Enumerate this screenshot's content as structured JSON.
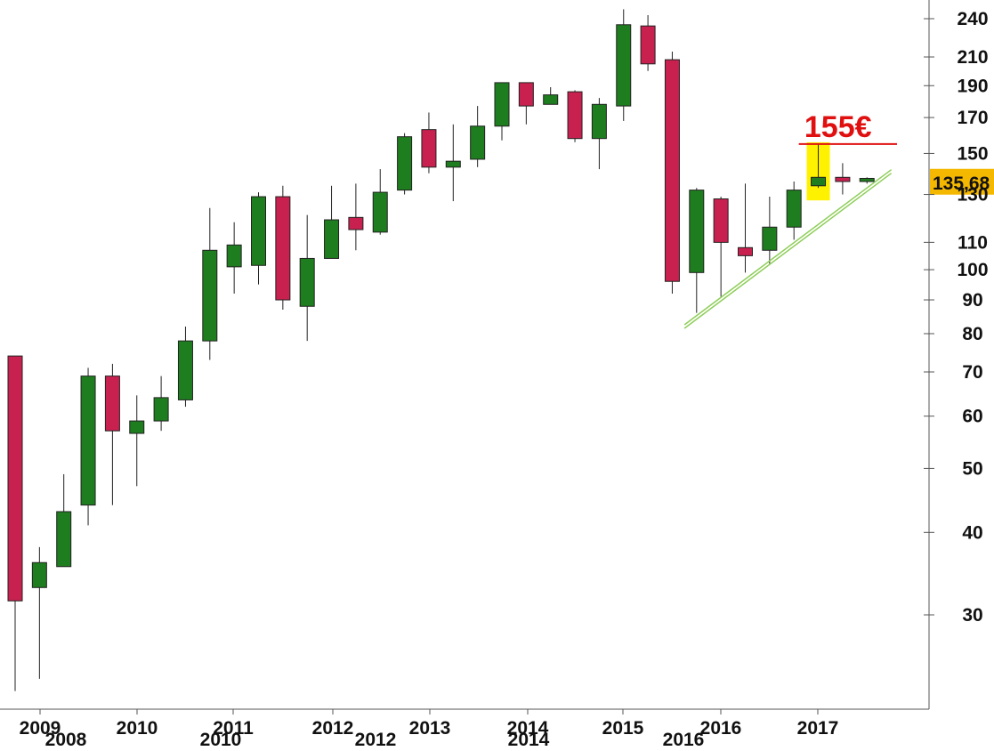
{
  "chart_data": {
    "type": "candlestick",
    "period": "monthly-quarters",
    "y_scale": "log",
    "ylim": [
      22,
      250
    ],
    "y_ticks": [
      240,
      210,
      190,
      170,
      150,
      130,
      110,
      100,
      90,
      80,
      70,
      60,
      50,
      40,
      30
    ],
    "x_labels": [
      "2009",
      "2010",
      "2011",
      "2012",
      "2013",
      "2014",
      "2015",
      "2016",
      "2017"
    ],
    "x_labels_ghost": [
      "2008",
      "2010",
      "2012",
      "2014",
      "2016"
    ],
    "colors": {
      "up": "#1e7d1e",
      "down": "#c8214f",
      "annotation": "#e01010",
      "highlight": "#fff200",
      "trendline": "#8fce5a",
      "price_tag": "#f5b800"
    },
    "candles": [
      {
        "open": 74,
        "high": 74,
        "low": 23,
        "close": 31.5
      },
      {
        "open": 33,
        "high": 38,
        "low": 24,
        "close": 36
      },
      {
        "open": 35.5,
        "high": 49,
        "low": 35.5,
        "close": 43
      },
      {
        "open": 44,
        "high": 71,
        "low": 41,
        "close": 69
      },
      {
        "open": 69,
        "high": 72,
        "low": 44,
        "close": 57
      },
      {
        "open": 56.5,
        "high": 64.5,
        "low": 47,
        "close": 59
      },
      {
        "open": 59,
        "high": 69,
        "low": 57,
        "close": 64
      },
      {
        "open": 63.5,
        "high": 82,
        "low": 62,
        "close": 78
      },
      {
        "open": 78,
        "high": 124,
        "low": 73,
        "close": 107
      },
      {
        "open": 101,
        "high": 118,
        "low": 92,
        "close": 109
      },
      {
        "open": 101.5,
        "high": 131,
        "low": 95,
        "close": 129
      },
      {
        "open": 129,
        "high": 134,
        "low": 87,
        "close": 90
      },
      {
        "open": 88,
        "high": 121,
        "low": 78,
        "close": 104
      },
      {
        "open": 104,
        "high": 134,
        "low": 104,
        "close": 119
      },
      {
        "open": 120,
        "high": 135,
        "low": 107,
        "close": 115
      },
      {
        "open": 114,
        "high": 142,
        "low": 113,
        "close": 131
      },
      {
        "open": 132,
        "high": 161,
        "low": 130,
        "close": 159
      },
      {
        "open": 163,
        "high": 173,
        "low": 140,
        "close": 143
      },
      {
        "open": 143,
        "high": 166,
        "low": 127,
        "close": 146
      },
      {
        "open": 147,
        "high": 177,
        "low": 143,
        "close": 165
      },
      {
        "open": 165,
        "high": 192,
        "low": 157,
        "close": 192
      },
      {
        "open": 192,
        "high": 192,
        "low": 166,
        "close": 177
      },
      {
        "open": 178,
        "high": 189,
        "low": 178,
        "close": 184
      },
      {
        "open": 186,
        "high": 187,
        "low": 156,
        "close": 158
      },
      {
        "open": 158,
        "high": 182,
        "low": 142,
        "close": 178
      },
      {
        "open": 177,
        "high": 248,
        "low": 168,
        "close": 235
      },
      {
        "open": 234,
        "high": 243,
        "low": 200,
        "close": 205
      },
      {
        "open": 208,
        "high": 214,
        "low": 92,
        "close": 96
      },
      {
        "open": 99,
        "high": 133,
        "low": 86,
        "close": 132
      },
      {
        "open": 128,
        "high": 129,
        "low": 91,
        "close": 110
      },
      {
        "open": 108,
        "high": 135,
        "low": 99,
        "close": 105
      },
      {
        "open": 107,
        "high": 129,
        "low": 102,
        "close": 116
      },
      {
        "open": 116,
        "high": 136,
        "low": 111,
        "close": 132
      },
      {
        "open": 134,
        "high": 155,
        "low": 133,
        "close": 138
      },
      {
        "open": 138,
        "high": 145,
        "low": 130,
        "close": 136
      },
      {
        "open": 136,
        "high": 138,
        "low": 135,
        "close": 137.5
      }
    ],
    "resistance": {
      "value": 155,
      "label": "155€"
    },
    "last_price": {
      "value": 135.68,
      "label": "135,68"
    },
    "trendline": {
      "from": {
        "index": 27.5,
        "value": 81.5
      },
      "to": {
        "index": 36,
        "value": 140
      }
    },
    "highlight_index": 33
  }
}
